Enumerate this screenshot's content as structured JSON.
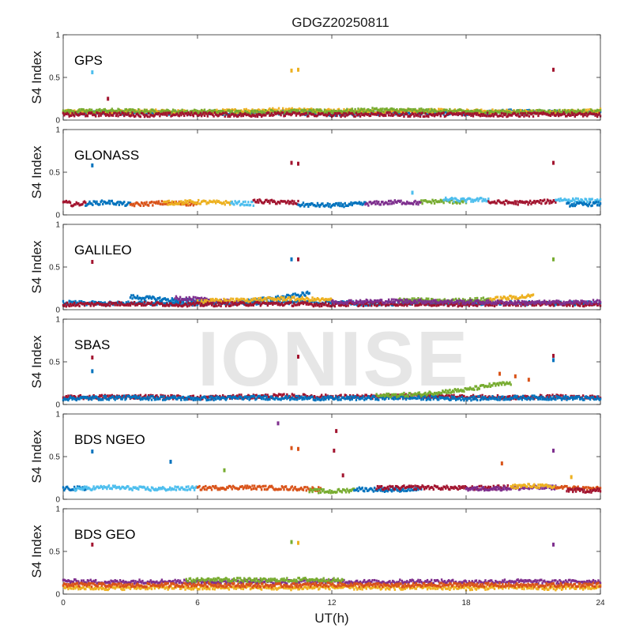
{
  "chart_data": {
    "type": "scatter",
    "title": "GDGZ20250811",
    "xlabel": "UT(h)",
    "ylabel": "S4 Index",
    "xlim": [
      0,
      24
    ],
    "ylim": [
      0,
      1
    ],
    "xticks": [
      "0",
      "6",
      "12",
      "18",
      "24"
    ],
    "yticks": [
      "0",
      "0.5",
      "1"
    ],
    "grid": false,
    "watermark": "IONISE",
    "colors": [
      "#0072bd",
      "#d95319",
      "#edb120",
      "#7e2f8e",
      "#77ac30",
      "#4dbeee",
      "#a2142f"
    ],
    "panels": [
      {
        "label": "GPS",
        "series": [
          {
            "color": "#0072bd",
            "x": [
              0,
              2,
              4,
              6,
              8,
              10,
              12,
              14,
              16,
              18,
              20,
              22,
              24
            ],
            "y": [
              0.08,
              0.09,
              0.08,
              0.09,
              0.08,
              0.09,
              0.07,
              0.08,
              0.09,
              0.08,
              0.1,
              0.09,
              0.08
            ]
          },
          {
            "color": "#edb120",
            "x": [
              0,
              2,
              4,
              6,
              8,
              10,
              12,
              14,
              16,
              18,
              20,
              22,
              24
            ],
            "y": [
              0.1,
              0.09,
              0.1,
              0.09,
              0.11,
              0.12,
              0.11,
              0.1,
              0.11,
              0.1,
              0.1,
              0.09,
              0.11
            ]
          },
          {
            "color": "#77ac30",
            "x": [
              0,
              2,
              4,
              6,
              8,
              10,
              12,
              14,
              16,
              18,
              20,
              22,
              24
            ],
            "y": [
              0.1,
              0.11,
              0.1,
              0.1,
              0.09,
              0.1,
              0.1,
              0.12,
              0.11,
              0.1,
              0.09,
              0.1,
              0.1
            ]
          },
          {
            "color": "#a2142f",
            "x": [
              0,
              2,
              4,
              6,
              8,
              10,
              12,
              14,
              16,
              18,
              20,
              22,
              24
            ],
            "y": [
              0.06,
              0.07,
              0.06,
              0.07,
              0.06,
              0.07,
              0.06,
              0.07,
              0.06,
              0.07,
              0.06,
              0.07,
              0.06
            ]
          }
        ],
        "outliers": [
          {
            "x": 1.3,
            "y": 0.56,
            "color": "#4dbeee"
          },
          {
            "x": 10.2,
            "y": 0.58,
            "color": "#edb120"
          },
          {
            "x": 10.5,
            "y": 0.59,
            "color": "#edb120"
          },
          {
            "x": 21.9,
            "y": 0.59,
            "color": "#a2142f"
          },
          {
            "x": 2.0,
            "y": 0.25,
            "color": "#a2142f"
          }
        ]
      },
      {
        "label": "GLONASS",
        "series": [
          {
            "color": "#a2142f",
            "x": [
              0,
              0.5,
              1
            ],
            "y": [
              0.15,
              0.12,
              0.14
            ]
          },
          {
            "color": "#0072bd",
            "x": [
              1,
              2,
              3
            ],
            "y": [
              0.13,
              0.15,
              0.12
            ]
          },
          {
            "color": "#d95319",
            "x": [
              3,
              4.5,
              6
            ],
            "y": [
              0.12,
              0.14,
              0.13
            ]
          },
          {
            "color": "#edb120",
            "x": [
              4.5,
              6,
              7.5
            ],
            "y": [
              0.14,
              0.15,
              0.14
            ]
          },
          {
            "color": "#4dbeee",
            "x": [
              7.5,
              8.5
            ],
            "y": [
              0.14,
              0.13
            ]
          },
          {
            "color": "#a2142f",
            "x": [
              8.5,
              9.5,
              10.5
            ],
            "y": [
              0.16,
              0.15,
              0.14
            ]
          },
          {
            "color": "#0072bd",
            "x": [
              10.5,
              12,
              13.5
            ],
            "y": [
              0.12,
              0.11,
              0.13
            ]
          },
          {
            "color": "#7e2f8e",
            "x": [
              13.5,
              15,
              16
            ],
            "y": [
              0.13,
              0.15,
              0.14
            ]
          },
          {
            "color": "#77ac30",
            "x": [
              16,
              17,
              18
            ],
            "y": [
              0.15,
              0.16,
              0.15
            ]
          },
          {
            "color": "#4dbeee",
            "x": [
              17,
              18,
              19
            ],
            "y": [
              0.18,
              0.17,
              0.18
            ]
          },
          {
            "color": "#a2142f",
            "x": [
              19,
              20.5,
              22
            ],
            "y": [
              0.15,
              0.14,
              0.16
            ]
          },
          {
            "color": "#4dbeee",
            "x": [
              22,
              23,
              24
            ],
            "y": [
              0.18,
              0.17,
              0.16
            ]
          },
          {
            "color": "#0072bd",
            "x": [
              22.5,
              24
            ],
            "y": [
              0.12,
              0.13
            ]
          }
        ],
        "outliers": [
          {
            "x": 1.3,
            "y": 0.58,
            "color": "#0072bd"
          },
          {
            "x": 10.2,
            "y": 0.61,
            "color": "#a2142f"
          },
          {
            "x": 10.5,
            "y": 0.6,
            "color": "#a2142f"
          },
          {
            "x": 21.9,
            "y": 0.61,
            "color": "#a2142f"
          },
          {
            "x": 15.6,
            "y": 0.26,
            "color": "#4dbeee"
          }
        ]
      },
      {
        "label": "GALILEO",
        "series": [
          {
            "color": "#0072bd",
            "x": [
              0,
              2,
              4,
              6,
              8,
              10,
              12,
              14,
              16,
              18,
              20,
              22,
              24
            ],
            "y": [
              0.08,
              0.07,
              0.08,
              0.07,
              0.08,
              0.09,
              0.08,
              0.07,
              0.08,
              0.07,
              0.08,
              0.07,
              0.08
            ]
          },
          {
            "color": "#0072bd",
            "x": [
              3,
              4,
              5,
              6,
              7
            ],
            "y": [
              0.15,
              0.13,
              0.11,
              0.1,
              0.09
            ]
          },
          {
            "color": "#0072bd",
            "x": [
              8,
              9,
              10,
              11
            ],
            "y": [
              0.09,
              0.12,
              0.15,
              0.19
            ]
          },
          {
            "color": "#7e2f8e",
            "x": [
              5,
              6,
              7,
              8
            ],
            "y": [
              0.14,
              0.12,
              0.1,
              0.08
            ]
          },
          {
            "color": "#edb120",
            "x": [
              6,
              8,
              10,
              12
            ],
            "y": [
              0.1,
              0.11,
              0.13,
              0.11
            ]
          },
          {
            "color": "#77ac30",
            "x": [
              15,
              16,
              17,
              18,
              19
            ],
            "y": [
              0.12,
              0.11,
              0.1,
              0.11,
              0.12
            ]
          },
          {
            "color": "#edb120",
            "x": [
              19,
              20,
              21
            ],
            "y": [
              0.12,
              0.14,
              0.16
            ]
          },
          {
            "color": "#a2142f",
            "x": [
              0,
              3,
              6,
              9,
              12,
              15,
              18,
              21,
              24
            ],
            "y": [
              0.06,
              0.07,
              0.06,
              0.07,
              0.06,
              0.07,
              0.06,
              0.07,
              0.06
            ]
          },
          {
            "color": "#7e2f8e",
            "x": [
              12,
              15,
              18,
              21,
              24
            ],
            "y": [
              0.09,
              0.1,
              0.09,
              0.08,
              0.09
            ]
          }
        ],
        "outliers": [
          {
            "x": 1.3,
            "y": 0.56,
            "color": "#a2142f"
          },
          {
            "x": 10.2,
            "y": 0.59,
            "color": "#0072bd"
          },
          {
            "x": 10.5,
            "y": 0.59,
            "color": "#a2142f"
          },
          {
            "x": 21.9,
            "y": 0.59,
            "color": "#77ac30"
          }
        ]
      },
      {
        "label": "SBAS",
        "series": [
          {
            "color": "#a2142f",
            "x": [
              0,
              2,
              4,
              6,
              8,
              10,
              12,
              14,
              16,
              18,
              20,
              22,
              24
            ],
            "y": [
              0.08,
              0.09,
              0.09,
              0.08,
              0.09,
              0.1,
              0.09,
              0.09,
              0.1,
              0.09,
              0.08,
              0.09,
              0.08
            ]
          },
          {
            "color": "#0072bd",
            "x": [
              0,
              3,
              6,
              9,
              12,
              15,
              18,
              21,
              24
            ],
            "y": [
              0.07,
              0.08,
              0.07,
              0.08,
              0.07,
              0.08,
              0.07,
              0.08,
              0.07
            ]
          },
          {
            "color": "#77ac30",
            "x": [
              14,
              15,
              16,
              17,
              18,
              19,
              20
            ],
            "y": [
              0.1,
              0.11,
              0.12,
              0.15,
              0.17,
              0.22,
              0.25
            ]
          }
        ],
        "outliers": [
          {
            "x": 1.3,
            "y": 0.55,
            "color": "#a2142f"
          },
          {
            "x": 1.3,
            "y": 0.39,
            "color": "#0072bd"
          },
          {
            "x": 10.5,
            "y": 0.56,
            "color": "#a2142f"
          },
          {
            "x": 21.9,
            "y": 0.57,
            "color": "#a2142f"
          },
          {
            "x": 21.9,
            "y": 0.52,
            "color": "#0072bd"
          },
          {
            "x": 19.5,
            "y": 0.36,
            "color": "#d95319"
          },
          {
            "x": 20.2,
            "y": 0.33,
            "color": "#d95319"
          },
          {
            "x": 20.8,
            "y": 0.29,
            "color": "#d95319"
          }
        ]
      },
      {
        "label": "BDS NGEO",
        "series": [
          {
            "color": "#0072bd",
            "x": [
              0,
              0.5,
              1
            ],
            "y": [
              0.12,
              0.13,
              0.12
            ]
          },
          {
            "color": "#4dbeee",
            "x": [
              0.5,
              2,
              4,
              6
            ],
            "y": [
              0.12,
              0.14,
              0.12,
              0.13
            ]
          },
          {
            "color": "#d95319",
            "x": [
              6,
              8,
              10,
              11.5
            ],
            "y": [
              0.13,
              0.14,
              0.13,
              0.12
            ]
          },
          {
            "color": "#77ac30",
            "x": [
              11,
              12,
              13
            ],
            "y": [
              0.1,
              0.09,
              0.11
            ]
          },
          {
            "color": "#0072bd",
            "x": [
              13,
              14.5,
              16
            ],
            "y": [
              0.12,
              0.11,
              0.12
            ]
          },
          {
            "color": "#a2142f",
            "x": [
              14,
              16,
              18,
              20
            ],
            "y": [
              0.13,
              0.14,
              0.13,
              0.14
            ]
          },
          {
            "color": "#7e2f8e",
            "x": [
              18,
              20,
              22
            ],
            "y": [
              0.12,
              0.13,
              0.14
            ]
          },
          {
            "color": "#edb120",
            "x": [
              20,
              21,
              22
            ],
            "y": [
              0.15,
              0.16,
              0.14
            ]
          },
          {
            "color": "#d95319",
            "x": [
              22,
              23,
              24
            ],
            "y": [
              0.14,
              0.13,
              0.12
            ]
          },
          {
            "color": "#a2142f",
            "x": [
              22.5,
              23.5,
              24
            ],
            "y": [
              0.11,
              0.1,
              0.11
            ]
          }
        ],
        "outliers": [
          {
            "x": 1.3,
            "y": 0.56,
            "color": "#0072bd"
          },
          {
            "x": 4.8,
            "y": 0.44,
            "color": "#0072bd"
          },
          {
            "x": 7.2,
            "y": 0.34,
            "color": "#77ac30"
          },
          {
            "x": 9.6,
            "y": 0.89,
            "color": "#7e2f8e"
          },
          {
            "x": 10.2,
            "y": 0.6,
            "color": "#d95319"
          },
          {
            "x": 10.5,
            "y": 0.59,
            "color": "#d95319"
          },
          {
            "x": 12.2,
            "y": 0.8,
            "color": "#a2142f"
          },
          {
            "x": 12.1,
            "y": 0.57,
            "color": "#a2142f"
          },
          {
            "x": 12.5,
            "y": 0.28,
            "color": "#a2142f"
          },
          {
            "x": 19.6,
            "y": 0.42,
            "color": "#d95319"
          },
          {
            "x": 21.9,
            "y": 0.57,
            "color": "#7e2f8e"
          },
          {
            "x": 22.7,
            "y": 0.26,
            "color": "#edb120"
          }
        ]
      },
      {
        "label": "BDS GEO",
        "series": [
          {
            "color": "#7e2f8e",
            "x": [
              0,
              2,
              4,
              6,
              8,
              10,
              12,
              14,
              16,
              18,
              20,
              22,
              24
            ],
            "y": [
              0.15,
              0.14,
              0.15,
              0.14,
              0.15,
              0.14,
              0.15,
              0.14,
              0.15,
              0.14,
              0.15,
              0.14,
              0.15
            ]
          },
          {
            "color": "#77ac30",
            "x": [
              5.5,
              7,
              9,
              11,
              12.5
            ],
            "y": [
              0.16,
              0.17,
              0.16,
              0.17,
              0.16
            ]
          },
          {
            "color": "#edb120",
            "x": [
              0,
              2,
              4,
              6,
              8,
              10,
              12,
              14,
              16,
              18,
              20,
              22,
              24
            ],
            "y": [
              0.08,
              0.07,
              0.08,
              0.07,
              0.08,
              0.07,
              0.08,
              0.07,
              0.08,
              0.07,
              0.08,
              0.07,
              0.08
            ]
          },
          {
            "color": "#d95319",
            "x": [
              0,
              3,
              6,
              9,
              12,
              15,
              18,
              21,
              24
            ],
            "y": [
              0.11,
              0.1,
              0.11,
              0.1,
              0.11,
              0.1,
              0.11,
              0.1,
              0.11
            ]
          }
        ],
        "outliers": [
          {
            "x": 1.3,
            "y": 0.58,
            "color": "#a2142f"
          },
          {
            "x": 10.2,
            "y": 0.61,
            "color": "#77ac30"
          },
          {
            "x": 10.5,
            "y": 0.6,
            "color": "#edb120"
          },
          {
            "x": 21.9,
            "y": 0.58,
            "color": "#7e2f8e"
          }
        ]
      }
    ]
  }
}
